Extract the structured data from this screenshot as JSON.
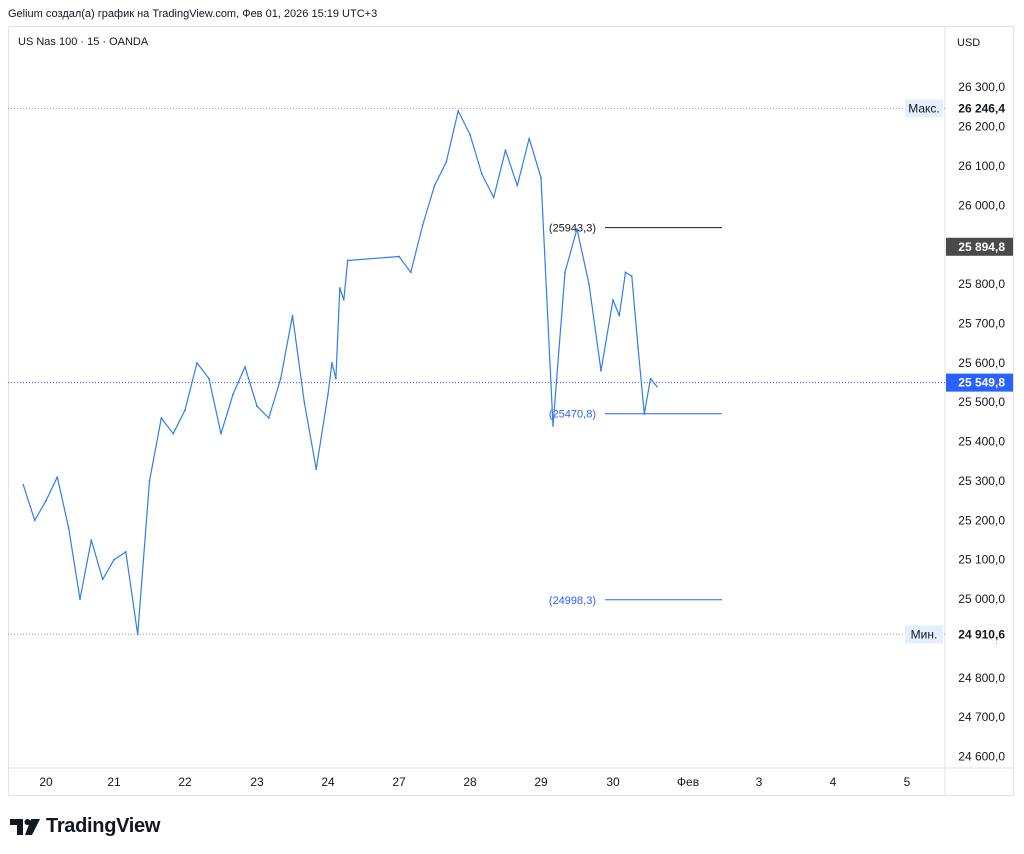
{
  "header": {
    "attribution": "Gelium создал(а) график на TradingView.com, Фев 01, 2026 15:19 UTC+3"
  },
  "legend": {
    "symbol": "US Nas 100 · 15 · OANDA"
  },
  "axis": {
    "currency": "USD"
  },
  "markers": {
    "max_label": "Макс.",
    "max_value": "26 246,4",
    "min_label": "Мин.",
    "min_value": "24 910,6",
    "current_value": "25 549,8",
    "crosshair_value": "25 894,8"
  },
  "annotations": [
    {
      "label": "(25943,3)",
      "value": 25943.3,
      "color": "#131722"
    },
    {
      "label": "(25470,8)",
      "value": 25470.8,
      "color": "#2962ff"
    },
    {
      "label": "(24998,3)",
      "value": 24998.3,
      "color": "#2962ff"
    }
  ],
  "colors": {
    "line": "#2f7fe8",
    "blue_label": "#2962ff",
    "dark_label": "#4a4a4a",
    "grid_text": "#131722"
  },
  "logo": {
    "text": "TradingView"
  },
  "chart_data": {
    "type": "line",
    "title": "US Nas 100 · 15 · OANDA",
    "ylim": [
      24560,
      26390
    ],
    "y_ticks": [
      24600,
      24700,
      24800,
      24900,
      25000,
      25100,
      25200,
      25300,
      25400,
      25500,
      25600,
      25700,
      25800,
      25900,
      26000,
      26100,
      26200,
      26300
    ],
    "y_tick_labels": [
      "24 600,0",
      "24 700,0",
      "24 800,0",
      "24 900,0",
      "25 000,0",
      "25 100,0",
      "25 200,0",
      "25 300,0",
      "25 400,0",
      "25 500,0",
      "25 600,0",
      "25 700,0",
      "25 800,0",
      "25 900,0",
      "26 000,0",
      "26 100,0",
      "26 200,0",
      "26 300,0"
    ],
    "x_tick_labels": [
      "20",
      "21",
      "22",
      "23",
      "24",
      "27",
      "28",
      "29",
      "30",
      "Фев",
      "3",
      "4",
      "5"
    ],
    "x_tick_dates": [
      "2026-01-20",
      "2026-01-21",
      "2026-01-22",
      "2026-01-23",
      "2026-01-24",
      "2026-01-27",
      "2026-01-28",
      "2026-01-29",
      "2026-01-30",
      "2026-02-01",
      "2026-02-03",
      "2026-02-04",
      "2026-02-05"
    ],
    "series": [
      {
        "x": [
          "2026-01-19 16:00",
          "2026-01-19 20:00",
          "2026-01-20 00:00",
          "2026-01-20 04:00",
          "2026-01-20 08:00",
          "2026-01-20 12:00",
          "2026-01-20 16:00",
          "2026-01-20 20:00",
          "2026-01-21 00:00",
          "2026-01-21 04:00",
          "2026-01-21 08:00",
          "2026-01-21 12:00",
          "2026-01-21 16:00",
          "2026-01-21 20:00",
          "2026-01-22 00:00",
          "2026-01-22 04:00",
          "2026-01-22 08:00",
          "2026-01-22 12:00",
          "2026-01-22 16:00",
          "2026-01-22 20:00",
          "2026-01-23 00:00",
          "2026-01-23 04:00",
          "2026-01-23 08:00",
          "2026-01-23 12:00",
          "2026-01-23 16:00",
          "2026-01-23 20:00",
          "2026-01-24 00:00",
          "2026-01-24 04:00",
          "2026-01-24 08:00",
          "2026-01-24 12:00",
          "2026-01-24 16:00",
          "2026-01-24 20:00",
          "2026-01-27 00:00",
          "2026-01-27 04:00",
          "2026-01-27 08:00",
          "2026-01-27 12:00",
          "2026-01-27 16:00",
          "2026-01-27 20:00",
          "2026-01-28 00:00",
          "2026-01-28 04:00",
          "2026-01-28 08:00",
          "2026-01-28 12:00",
          "2026-01-28 16:00",
          "2026-01-28 20:00",
          "2026-01-29 00:00",
          "2026-01-29 04:00",
          "2026-01-29 08:00",
          "2026-01-29 12:00",
          "2026-01-29 16:00",
          "2026-01-29 20:00",
          "2026-01-30 00:00",
          "2026-01-30 04:00",
          "2026-01-30 08:00",
          "2026-01-30 12:00",
          "2026-01-30 16:00",
          "2026-01-30 20:00",
          "2026-01-31 00:00",
          "2026-01-31 04:00"
        ],
        "values": [
          25290,
          25200,
          25250,
          25310,
          25180,
          25000,
          25150,
          25050,
          25100,
          25120,
          24910,
          25300,
          25460,
          25420,
          25480,
          25600,
          25560,
          25420,
          25520,
          25590,
          25490,
          25460,
          25560,
          25720,
          25500,
          25330,
          25520,
          25600,
          25560,
          25790,
          25760,
          25860,
          25870,
          25830,
          25950,
          26050,
          26110,
          26240,
          26180,
          26080,
          26020,
          26140,
          26050,
          26170,
          26070,
          25440,
          25830,
          25940,
          25800,
          25580,
          25760,
          25720,
          25830,
          25820,
          25640,
          25470,
          25560,
          25540
        ]
      }
    ]
  }
}
